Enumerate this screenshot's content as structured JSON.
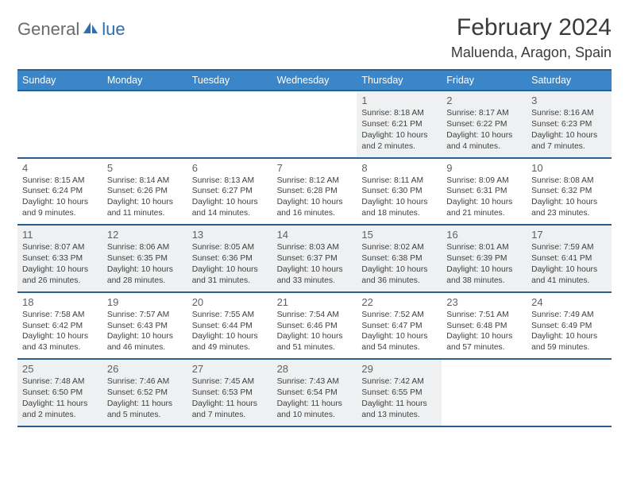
{
  "logo": {
    "text1": "General",
    "text2": "lue"
  },
  "title": "February 2024",
  "location": "Maluenda, Aragon, Spain",
  "theme": {
    "header_bg": "#3b86c8",
    "header_border": "#2b5f8f",
    "alt_bg": "#eff0f1",
    "text_color": "#404040",
    "title_color": "#3a3a3a",
    "logo_gray": "#6a6a6a",
    "logo_blue": "#2b6fb3"
  },
  "day_headers": [
    "Sunday",
    "Monday",
    "Tuesday",
    "Wednesday",
    "Thursday",
    "Friday",
    "Saturday"
  ],
  "weeks": [
    [
      {
        "empty": true
      },
      {
        "empty": true
      },
      {
        "empty": true
      },
      {
        "empty": true
      },
      {
        "num": "1",
        "sunrise": "Sunrise: 8:18 AM",
        "sunset": "Sunset: 6:21 PM",
        "daylight": "Daylight: 10 hours and 2 minutes."
      },
      {
        "num": "2",
        "sunrise": "Sunrise: 8:17 AM",
        "sunset": "Sunset: 6:22 PM",
        "daylight": "Daylight: 10 hours and 4 minutes."
      },
      {
        "num": "3",
        "sunrise": "Sunrise: 8:16 AM",
        "sunset": "Sunset: 6:23 PM",
        "daylight": "Daylight: 10 hours and 7 minutes."
      }
    ],
    [
      {
        "num": "4",
        "sunrise": "Sunrise: 8:15 AM",
        "sunset": "Sunset: 6:24 PM",
        "daylight": "Daylight: 10 hours and 9 minutes."
      },
      {
        "num": "5",
        "sunrise": "Sunrise: 8:14 AM",
        "sunset": "Sunset: 6:26 PM",
        "daylight": "Daylight: 10 hours and 11 minutes."
      },
      {
        "num": "6",
        "sunrise": "Sunrise: 8:13 AM",
        "sunset": "Sunset: 6:27 PM",
        "daylight": "Daylight: 10 hours and 14 minutes."
      },
      {
        "num": "7",
        "sunrise": "Sunrise: 8:12 AM",
        "sunset": "Sunset: 6:28 PM",
        "daylight": "Daylight: 10 hours and 16 minutes."
      },
      {
        "num": "8",
        "sunrise": "Sunrise: 8:11 AM",
        "sunset": "Sunset: 6:30 PM",
        "daylight": "Daylight: 10 hours and 18 minutes."
      },
      {
        "num": "9",
        "sunrise": "Sunrise: 8:09 AM",
        "sunset": "Sunset: 6:31 PM",
        "daylight": "Daylight: 10 hours and 21 minutes."
      },
      {
        "num": "10",
        "sunrise": "Sunrise: 8:08 AM",
        "sunset": "Sunset: 6:32 PM",
        "daylight": "Daylight: 10 hours and 23 minutes."
      }
    ],
    [
      {
        "num": "11",
        "sunrise": "Sunrise: 8:07 AM",
        "sunset": "Sunset: 6:33 PM",
        "daylight": "Daylight: 10 hours and 26 minutes."
      },
      {
        "num": "12",
        "sunrise": "Sunrise: 8:06 AM",
        "sunset": "Sunset: 6:35 PM",
        "daylight": "Daylight: 10 hours and 28 minutes."
      },
      {
        "num": "13",
        "sunrise": "Sunrise: 8:05 AM",
        "sunset": "Sunset: 6:36 PM",
        "daylight": "Daylight: 10 hours and 31 minutes."
      },
      {
        "num": "14",
        "sunrise": "Sunrise: 8:03 AM",
        "sunset": "Sunset: 6:37 PM",
        "daylight": "Daylight: 10 hours and 33 minutes."
      },
      {
        "num": "15",
        "sunrise": "Sunrise: 8:02 AM",
        "sunset": "Sunset: 6:38 PM",
        "daylight": "Daylight: 10 hours and 36 minutes."
      },
      {
        "num": "16",
        "sunrise": "Sunrise: 8:01 AM",
        "sunset": "Sunset: 6:39 PM",
        "daylight": "Daylight: 10 hours and 38 minutes."
      },
      {
        "num": "17",
        "sunrise": "Sunrise: 7:59 AM",
        "sunset": "Sunset: 6:41 PM",
        "daylight": "Daylight: 10 hours and 41 minutes."
      }
    ],
    [
      {
        "num": "18",
        "sunrise": "Sunrise: 7:58 AM",
        "sunset": "Sunset: 6:42 PM",
        "daylight": "Daylight: 10 hours and 43 minutes."
      },
      {
        "num": "19",
        "sunrise": "Sunrise: 7:57 AM",
        "sunset": "Sunset: 6:43 PM",
        "daylight": "Daylight: 10 hours and 46 minutes."
      },
      {
        "num": "20",
        "sunrise": "Sunrise: 7:55 AM",
        "sunset": "Sunset: 6:44 PM",
        "daylight": "Daylight: 10 hours and 49 minutes."
      },
      {
        "num": "21",
        "sunrise": "Sunrise: 7:54 AM",
        "sunset": "Sunset: 6:46 PM",
        "daylight": "Daylight: 10 hours and 51 minutes."
      },
      {
        "num": "22",
        "sunrise": "Sunrise: 7:52 AM",
        "sunset": "Sunset: 6:47 PM",
        "daylight": "Daylight: 10 hours and 54 minutes."
      },
      {
        "num": "23",
        "sunrise": "Sunrise: 7:51 AM",
        "sunset": "Sunset: 6:48 PM",
        "daylight": "Daylight: 10 hours and 57 minutes."
      },
      {
        "num": "24",
        "sunrise": "Sunrise: 7:49 AM",
        "sunset": "Sunset: 6:49 PM",
        "daylight": "Daylight: 10 hours and 59 minutes."
      }
    ],
    [
      {
        "num": "25",
        "sunrise": "Sunrise: 7:48 AM",
        "sunset": "Sunset: 6:50 PM",
        "daylight": "Daylight: 11 hours and 2 minutes."
      },
      {
        "num": "26",
        "sunrise": "Sunrise: 7:46 AM",
        "sunset": "Sunset: 6:52 PM",
        "daylight": "Daylight: 11 hours and 5 minutes."
      },
      {
        "num": "27",
        "sunrise": "Sunrise: 7:45 AM",
        "sunset": "Sunset: 6:53 PM",
        "daylight": "Daylight: 11 hours and 7 minutes."
      },
      {
        "num": "28",
        "sunrise": "Sunrise: 7:43 AM",
        "sunset": "Sunset: 6:54 PM",
        "daylight": "Daylight: 11 hours and 10 minutes."
      },
      {
        "num": "29",
        "sunrise": "Sunrise: 7:42 AM",
        "sunset": "Sunset: 6:55 PM",
        "daylight": "Daylight: 11 hours and 13 minutes."
      },
      {
        "empty": true
      },
      {
        "empty": true
      }
    ]
  ]
}
